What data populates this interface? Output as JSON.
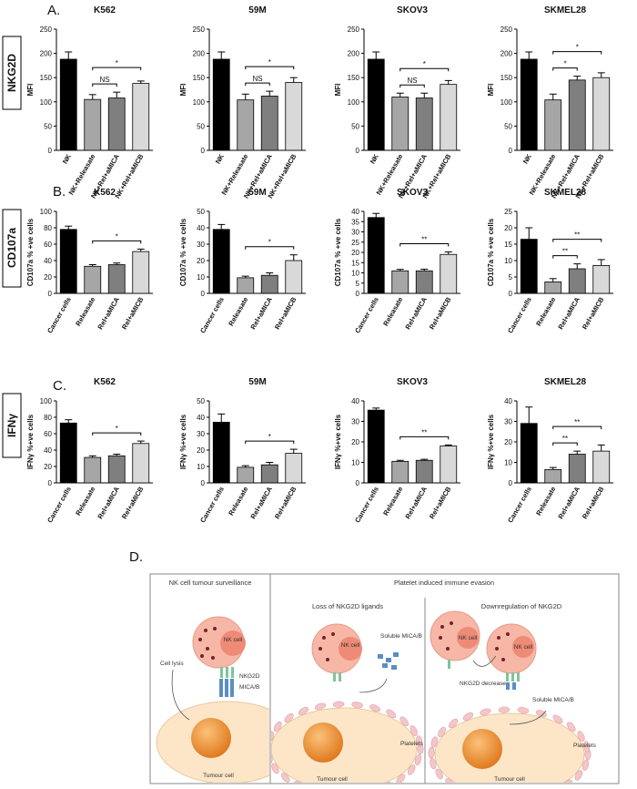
{
  "chart_data": [
    {
      "type": "bar",
      "title": "K562",
      "ylabel": "MFI",
      "categories": [
        "NK",
        "NK+Releasate",
        "NK+Rel+aMICA",
        "NK+Rel+aMICB"
      ],
      "values": [
        188,
        105,
        108,
        138
      ],
      "errors": [
        15,
        10,
        12,
        5
      ],
      "colors": [
        "#000000",
        "#a6a6a6",
        "#7f7f7f",
        "#d9d9d9"
      ],
      "ylim": [
        0,
        250
      ],
      "yticks": [
        0,
        50,
        100,
        150,
        200,
        250
      ],
      "brackets": [
        {
          "label": "NS",
          "from": 1,
          "to": 2
        },
        {
          "label": "*",
          "from": 1,
          "to": 3
        }
      ]
    },
    {
      "type": "bar",
      "title": "59M",
      "ylabel": "MFI",
      "categories": [
        "NK",
        "NK+Releasate",
        "NK+Rel+aMICA",
        "NK+Rel+aMICB"
      ],
      "values": [
        188,
        104,
        112,
        140
      ],
      "errors": [
        15,
        12,
        10,
        10
      ],
      "colors": [
        "#000000",
        "#a6a6a6",
        "#7f7f7f",
        "#d9d9d9"
      ],
      "ylim": [
        0,
        250
      ],
      "yticks": [
        0,
        50,
        100,
        150,
        200,
        250
      ],
      "brackets": [
        {
          "label": "NS",
          "from": 1,
          "to": 2
        },
        {
          "label": "*",
          "from": 1,
          "to": 3
        }
      ]
    },
    {
      "type": "bar",
      "title": "SKOV3",
      "ylabel": "MFI",
      "categories": [
        "NK",
        "NK+Releasate",
        "NK+Rel+aMICA",
        "NK+Rel+aMICB"
      ],
      "values": [
        188,
        110,
        108,
        136
      ],
      "errors": [
        15,
        8,
        10,
        8
      ],
      "colors": [
        "#000000",
        "#a6a6a6",
        "#7f7f7f",
        "#d9d9d9"
      ],
      "ylim": [
        0,
        250
      ],
      "yticks": [
        0,
        50,
        100,
        150,
        200,
        250
      ],
      "brackets": [
        {
          "label": "NS",
          "from": 1,
          "to": 2
        },
        {
          "label": "*",
          "from": 1,
          "to": 3
        }
      ]
    },
    {
      "type": "bar",
      "title": "SKMEL28",
      "ylabel": "MFI",
      "categories": [
        "NK",
        "NK+Releasate",
        "NK+Rel+aMICA",
        "NK+Rel+aMICB"
      ],
      "values": [
        188,
        104,
        145,
        150
      ],
      "errors": [
        15,
        12,
        8,
        10
      ],
      "colors": [
        "#000000",
        "#a6a6a6",
        "#7f7f7f",
        "#d9d9d9"
      ],
      "ylim": [
        0,
        250
      ],
      "yticks": [
        0,
        50,
        100,
        150,
        200,
        250
      ],
      "brackets": [
        {
          "label": "*",
          "from": 1,
          "to": 2
        },
        {
          "label": "*",
          "from": 1,
          "to": 3
        }
      ]
    },
    {
      "type": "bar",
      "title": "K562",
      "ylabel": "CD107a % +ve cells",
      "categories": [
        "Cancer cells",
        "Releasate",
        "Rel+aMICA",
        "Rel+aMICB"
      ],
      "values": [
        78,
        33,
        35,
        51
      ],
      "errors": [
        4,
        2,
        2,
        3
      ],
      "colors": [
        "#000000",
        "#a6a6a6",
        "#7f7f7f",
        "#d9d9d9"
      ],
      "ylim": [
        0,
        100
      ],
      "yticks": [
        0,
        20,
        40,
        60,
        80,
        100
      ],
      "brackets": [
        {
          "label": "*",
          "from": 1,
          "to": 3
        }
      ]
    },
    {
      "type": "bar",
      "title": "59M",
      "ylabel": "CD107a % +ve cells",
      "categories": [
        "Cancer cells",
        "Releasate",
        "Rel+aMICA",
        "Rel+aMICB"
      ],
      "values": [
        39,
        9.5,
        11,
        20
      ],
      "errors": [
        3,
        1,
        1.5,
        3.5
      ],
      "colors": [
        "#000000",
        "#a6a6a6",
        "#7f7f7f",
        "#d9d9d9"
      ],
      "ylim": [
        0,
        50
      ],
      "yticks": [
        0,
        10,
        20,
        30,
        40,
        50
      ],
      "brackets": [
        {
          "label": "*",
          "from": 1,
          "to": 3
        }
      ]
    },
    {
      "type": "bar",
      "title": "SKOV3",
      "ylabel": "CD107a % +ve cells",
      "categories": [
        "Cancer cells",
        "Releasate",
        "Rel+aMICA",
        "Rel+aMICB"
      ],
      "values": [
        37,
        11,
        11,
        19
      ],
      "errors": [
        2,
        0.7,
        0.8,
        1.2
      ],
      "colors": [
        "#000000",
        "#a6a6a6",
        "#7f7f7f",
        "#d9d9d9"
      ],
      "ylim": [
        0,
        40
      ],
      "yticks": [
        0,
        5,
        10,
        15,
        20,
        25,
        30,
        35,
        40
      ],
      "brackets": [
        {
          "label": "**",
          "from": 1,
          "to": 3
        }
      ]
    },
    {
      "type": "bar",
      "title": "SKMEL28",
      "ylabel": "CD107a % +ve cells",
      "categories": [
        "Cancer cells",
        "Releasate",
        "Rel+aMICA",
        "Rel+aMICB"
      ],
      "values": [
        16.5,
        3.5,
        7.5,
        8.5
      ],
      "errors": [
        3.5,
        1,
        1.5,
        1.8
      ],
      "colors": [
        "#000000",
        "#a6a6a6",
        "#7f7f7f",
        "#d9d9d9"
      ],
      "ylim": [
        0,
        25
      ],
      "yticks": [
        0,
        5,
        10,
        15,
        20,
        25
      ],
      "brackets": [
        {
          "label": "**",
          "from": 1,
          "to": 2
        },
        {
          "label": "**",
          "from": 1,
          "to": 3
        }
      ]
    },
    {
      "type": "bar",
      "title": "K562",
      "ylabel": "IFNγ %+ve cells",
      "categories": [
        "Cancer cells",
        "Releasate",
        "Rel+aMICA",
        "Rel+aMICB"
      ],
      "values": [
        73,
        31,
        33,
        48
      ],
      "errors": [
        4,
        2,
        2,
        3
      ],
      "colors": [
        "#000000",
        "#a6a6a6",
        "#7f7f7f",
        "#d9d9d9"
      ],
      "ylim": [
        0,
        100
      ],
      "yticks": [
        0,
        20,
        40,
        60,
        80,
        100
      ],
      "brackets": [
        {
          "label": "*",
          "from": 1,
          "to": 3
        }
      ]
    },
    {
      "type": "bar",
      "title": "59M",
      "ylabel": "IFNγ %+ve cells",
      "categories": [
        "Cancer cells",
        "Releasate",
        "Rel+aMICA",
        "Rel+aMICB"
      ],
      "values": [
        37,
        9.5,
        11,
        18
      ],
      "errors": [
        5,
        1,
        1.5,
        2.5
      ],
      "colors": [
        "#000000",
        "#a6a6a6",
        "#7f7f7f",
        "#d9d9d9"
      ],
      "ylim": [
        0,
        50
      ],
      "yticks": [
        0,
        10,
        20,
        30,
        40,
        50
      ],
      "brackets": [
        {
          "label": "*",
          "from": 1,
          "to": 3
        }
      ]
    },
    {
      "type": "bar",
      "title": "SKOV3",
      "ylabel": "IFNγ %+ve cells",
      "categories": [
        "Cancer cells",
        "Releasate",
        "Rel+aMICA",
        "Rel+aMICB"
      ],
      "values": [
        35.5,
        10.5,
        11,
        18
      ],
      "errors": [
        1,
        0.5,
        0.5,
        0.5
      ],
      "colors": [
        "#000000",
        "#a6a6a6",
        "#7f7f7f",
        "#d9d9d9"
      ],
      "ylim": [
        0,
        40
      ],
      "yticks": [
        0,
        10,
        20,
        30,
        40
      ],
      "brackets": [
        {
          "label": "**",
          "from": 1,
          "to": 3
        }
      ]
    },
    {
      "type": "bar",
      "title": "SKMEL28",
      "ylabel": "IFNγ %+ve cells",
      "categories": [
        "Cancer cells",
        "Releasate",
        "Rel+aMICA",
        "Rel+aMICB"
      ],
      "values": [
        29,
        6.5,
        14,
        15.5
      ],
      "errors": [
        8,
        1,
        1.5,
        3
      ],
      "colors": [
        "#000000",
        "#a6a6a6",
        "#7f7f7f",
        "#d9d9d9"
      ],
      "ylim": [
        0,
        40
      ],
      "yticks": [
        0,
        10,
        20,
        30,
        40
      ],
      "brackets": [
        {
          "label": "**",
          "from": 1,
          "to": 2
        },
        {
          "label": "**",
          "from": 1,
          "to": 3
        }
      ]
    }
  ],
  "panels": [
    {
      "letter": "A.",
      "marker": "NKG2D"
    },
    {
      "letter": "B.",
      "marker": "CD107a"
    },
    {
      "letter": "C.",
      "marker": "IFNγ"
    }
  ],
  "diagram": {
    "letter": "D.",
    "headers": [
      "NK cell tumour surveillance",
      "Platelet induced immune evasion",
      "Loss of NKG2D ligands",
      "Downregulation of NKG2D"
    ],
    "labels": [
      "Cell lysis",
      "NK cell",
      "NKG2D",
      "MICA/B",
      "Tumour cell",
      "NK cell",
      "Soluble MICA/B",
      "Platelets",
      "Tumour cell",
      "NK cell",
      "NK cell",
      "NKG2D decrease",
      "Soluble MICA/B",
      "Platelets",
      "Tumour cell"
    ]
  }
}
